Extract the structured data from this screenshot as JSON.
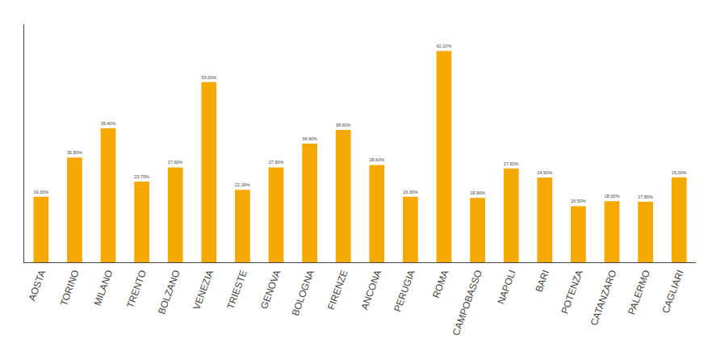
{
  "chart_data": {
    "type": "bar",
    "categories": [
      "AOSTA",
      "TORINO",
      "MILANO",
      "TRENTO",
      "BOLZANO",
      "VENEZIA",
      "TRIESTE",
      "GENOVA",
      "BOLOGNA",
      "FIRENZE",
      "ANCONA",
      "PERUGIA",
      "ROMA",
      "CAMPOBASSO",
      "NAPOLI",
      "BARI",
      "POTENZA",
      "CATANZARO",
      "PALERMO",
      "CAGLIARI"
    ],
    "values": [
      19.3,
      30.8,
      39.4,
      23.7,
      27.9,
      53.0,
      21.3,
      27.9,
      34.9,
      38.9,
      28.6,
      19.3,
      62.1,
      18.9,
      27.6,
      24.9,
      16.5,
      18.0,
      17.8,
      25.0
    ],
    "value_labels": [
      "19,30%",
      "30,80%",
      "39,40%",
      "23,70%",
      "27,90%",
      "53,00%",
      "21,30%",
      "27,90%",
      "34,90%",
      "38,90%",
      "28,60%",
      "19,30%",
      "62,10%",
      "18,90%",
      "27,60%",
      "24,90%",
      "16,50%",
      "18,00%",
      "17,80%",
      "25,00%"
    ],
    "color": "#F5A800",
    "ylim": [
      0,
      70
    ],
    "data_labels": true,
    "tick_labels": "x",
    "grid": false
  }
}
